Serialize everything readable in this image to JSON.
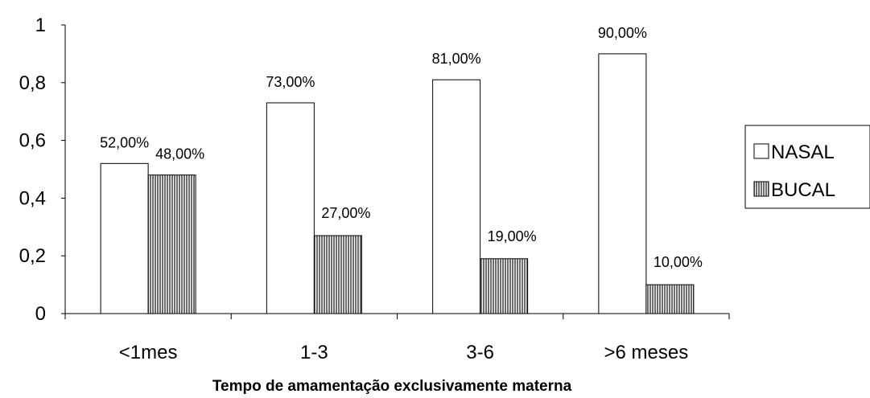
{
  "chart_data": {
    "type": "bar",
    "title": "",
    "xlabel": "Tempo de amamentação exclusivamente materna",
    "ylabel": "",
    "categories": [
      "<1mes",
      "1-3",
      "3-6",
      ">6 meses"
    ],
    "ylim": [
      0,
      1
    ],
    "yticks": [
      "0",
      "0,2",
      "0,4",
      "0,6",
      "0,8",
      "1"
    ],
    "grid": false,
    "legend_position": "right",
    "series": [
      {
        "name": "NASAL",
        "values": [
          0.52,
          0.73,
          0.81,
          0.9
        ],
        "labels": [
          "52,00%",
          "73,00%",
          "81,00%",
          "90,00%"
        ],
        "fill": "#ffffff"
      },
      {
        "name": "BUCAL",
        "values": [
          0.48,
          0.27,
          0.19,
          0.1
        ],
        "labels": [
          "48,00%",
          "27,00%",
          "19,00%",
          "10,00%"
        ],
        "fill": "#8c8c8c",
        "pattern": "vertical-stripes"
      }
    ]
  }
}
